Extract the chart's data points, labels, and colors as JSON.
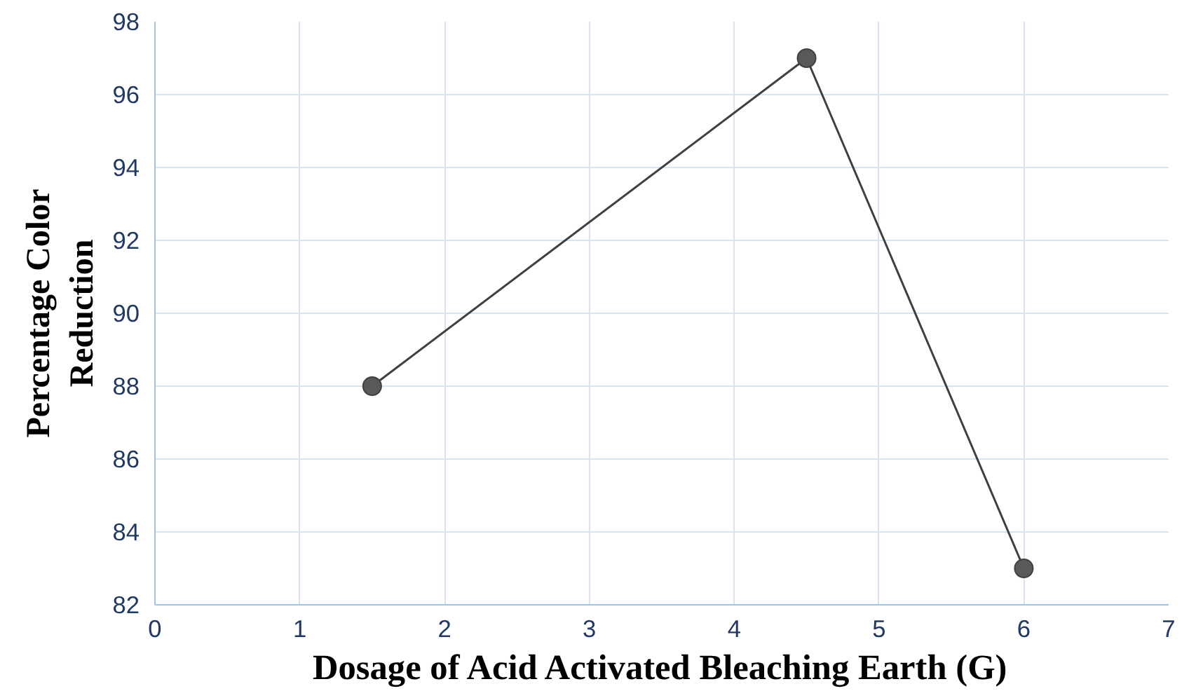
{
  "chart_data": {
    "type": "line",
    "xlabel": "Dosage of Acid Activated Bleaching Earth (G)",
    "ylabel": "Percentage Color Reduction",
    "x": [
      1.5,
      4.5,
      6
    ],
    "series": [
      {
        "color": "#404040",
        "values": [
          88,
          97,
          83
        ]
      }
    ],
    "xlim": [
      0,
      7
    ],
    "xticks": [
      0,
      1,
      2,
      3,
      4,
      5,
      6,
      7
    ],
    "ylim": [
      82,
      98
    ],
    "yticks": [
      82,
      84,
      86,
      88,
      90,
      92,
      94,
      96,
      98
    ],
    "grid": true,
    "marker": "circle",
    "line_style": "solid"
  }
}
